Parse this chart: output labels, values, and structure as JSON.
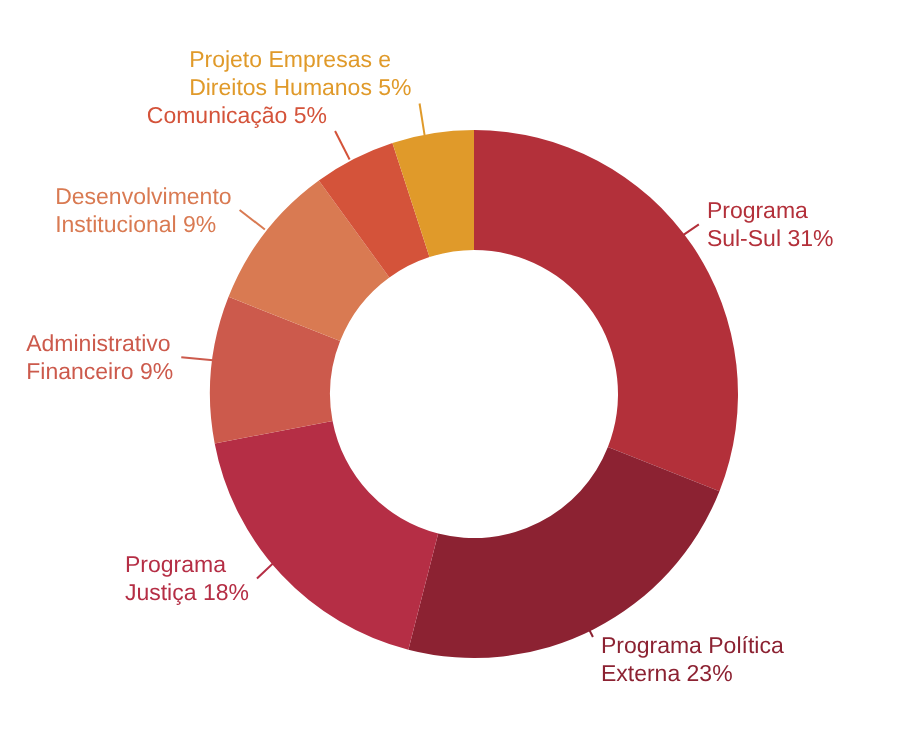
{
  "chart_data": {
    "type": "donut",
    "categories": [
      "Programa Sul-Sul",
      "Programa Política Externa",
      "Programa Justiça",
      "Administrativo Financeiro",
      "Desenvolvimento Institucional",
      "Comunicação",
      "Projeto Empresas e Direitos Humanos"
    ],
    "values": [
      31,
      23,
      18,
      9,
      9,
      5,
      5
    ],
    "value_labels": [
      "31%",
      "23%",
      "18%",
      "9%",
      "9%",
      "5%",
      "5%"
    ],
    "colors": [
      "#b3303a",
      "#8c2232",
      "#b52e45",
      "#cc5a4c",
      "#d97a52",
      "#d4533a",
      "#e09a2a"
    ]
  }
}
